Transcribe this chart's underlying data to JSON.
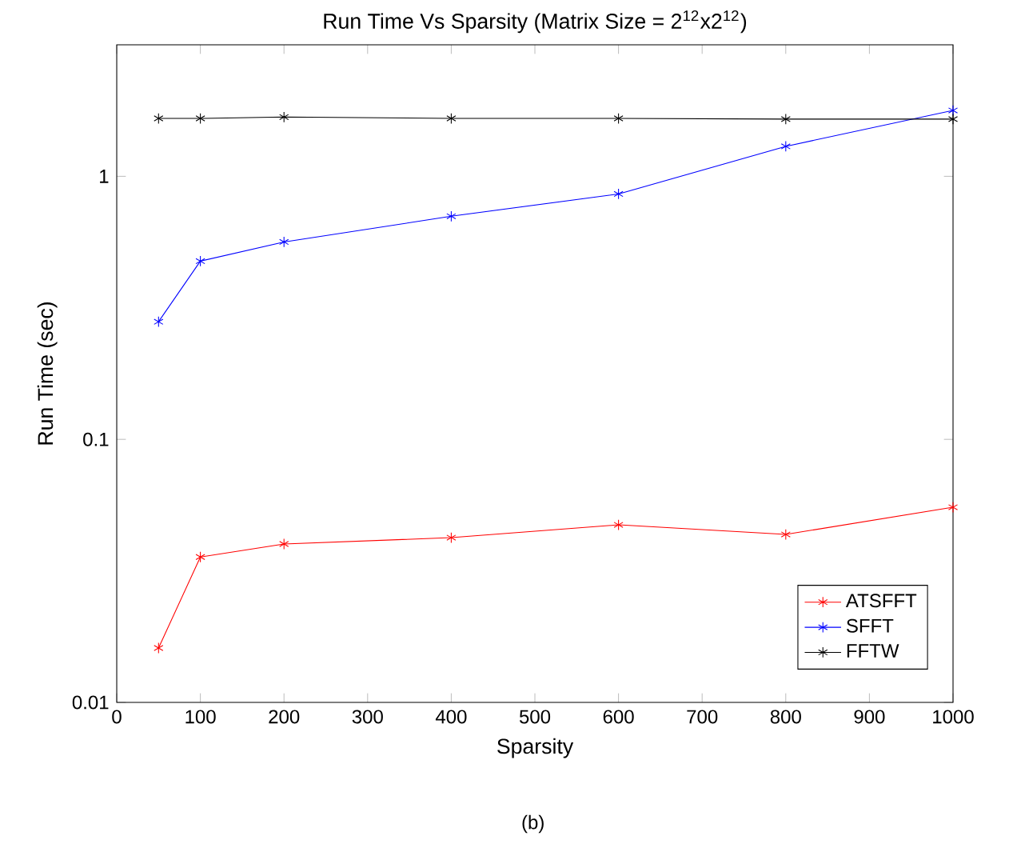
{
  "chart_data": {
    "type": "line",
    "title": "Run Time Vs Sparsity (Matrix Size = 2$^{12}$x2$^{12}$)",
    "xlabel": "Sparsity",
    "ylabel": "Run Time (sec)",
    "x": [
      50,
      100,
      200,
      400,
      600,
      800,
      1000
    ],
    "series": [
      {
        "name": "ATSFFT",
        "color": "#ff0000",
        "values": [
          0.0161,
          0.0357,
          0.04,
          0.0423,
          0.0473,
          0.0435,
          0.0552
        ]
      },
      {
        "name": "SFFT",
        "color": "#0000ff",
        "values": [
          0.28,
          0.476,
          0.563,
          0.705,
          0.857,
          1.3,
          1.78
        ]
      },
      {
        "name": "FFTW",
        "color": "#000000",
        "values": [
          1.66,
          1.66,
          1.68,
          1.66,
          1.66,
          1.65,
          1.65
        ]
      }
    ],
    "log": "y",
    "xlim": [
      0,
      1000
    ],
    "ylim": [
      0.01,
      3.162
    ],
    "xticks": [
      0,
      100,
      200,
      300,
      400,
      500,
      600,
      700,
      800,
      900,
      1000
    ],
    "yticks": [
      0.01,
      0.1,
      1
    ],
    "marker": "cross",
    "line_style": "solid",
    "legend": "bottom right",
    "grid": false,
    "annotations": [
      "(b)"
    ]
  }
}
